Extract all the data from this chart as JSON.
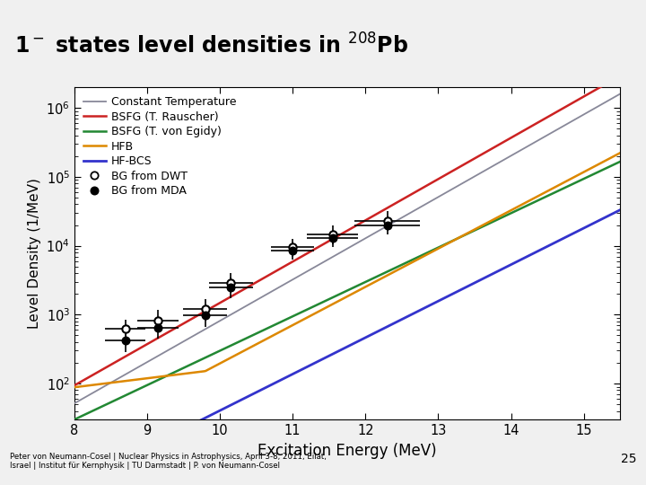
{
  "xlabel": "Excitation Energy (MeV)",
  "ylabel": "Level Density (1/MeV)",
  "xlim": [
    8,
    15.5
  ],
  "ylim_log": [
    30,
    2000000
  ],
  "top_bar_color": "#c8a020",
  "slide_bg": "#f0f0f0",
  "lines": {
    "CT": {
      "color": "#888899",
      "label": "Constant Temperature",
      "lw": 1.3
    },
    "BSFG_R": {
      "color": "#cc2222",
      "label": "BSFG (T. Rauscher)",
      "lw": 1.8
    },
    "BSFG_E": {
      "color": "#228833",
      "label": "BSFG (T. von Egidy)",
      "lw": 1.8
    },
    "HFB": {
      "color": "#dd8800",
      "label": "HFB",
      "lw": 1.8
    },
    "HFBCS": {
      "color": "#3333cc",
      "label": "HF-BCS",
      "lw": 2.0
    }
  },
  "CT_params": {
    "a": 1.38,
    "b": -7.1
  },
  "BSFG_R_params": {
    "a": 1.38,
    "b": -6.5
  },
  "BSFG_E_params": {
    "a": 1.15,
    "b": -5.8
  },
  "HFB_params": {
    "a": 1.28,
    "b": -10.5,
    "x_kink": 9.8,
    "y_kink_log": 2.18
  },
  "HFBCS_params": {
    "a": 1.22,
    "b": -8.5
  },
  "data_DWT": {
    "x": [
      8.7,
      9.15,
      9.8,
      10.15,
      11.0,
      11.55,
      12.3
    ],
    "y": [
      620,
      830,
      1200,
      2900,
      9500,
      14500,
      23000
    ],
    "xerr": [
      0.28,
      0.28,
      0.3,
      0.3,
      0.3,
      0.35,
      0.45
    ],
    "yerr_lo": [
      180,
      250,
      380,
      850,
      2500,
      4000,
      6500
    ],
    "yerr_hi": [
      220,
      330,
      480,
      1100,
      3200,
      5000,
      8500
    ]
  },
  "data_MDA": {
    "x": [
      8.7,
      9.15,
      9.8,
      10.15,
      11.0,
      11.55,
      12.3
    ],
    "y": [
      420,
      650,
      980,
      2500,
      8500,
      13000,
      20000
    ],
    "xerr": [
      0.28,
      0.28,
      0.3,
      0.3,
      0.3,
      0.35,
      0.45
    ],
    "yerr_lo": [
      130,
      200,
      310,
      750,
      2200,
      3500,
      5500
    ],
    "yerr_hi": [
      170,
      280,
      400,
      1000,
      2800,
      4200,
      7000
    ]
  },
  "footer_text": "Peter von Neumann-Cosel | Nuclear Physics in Astrophysics, April 3-8, 2011, Eilat,\nIsrael | Institut für Kernphysik | TU Darmstadt | P. von Neumann-Cosel",
  "page_number": "25"
}
